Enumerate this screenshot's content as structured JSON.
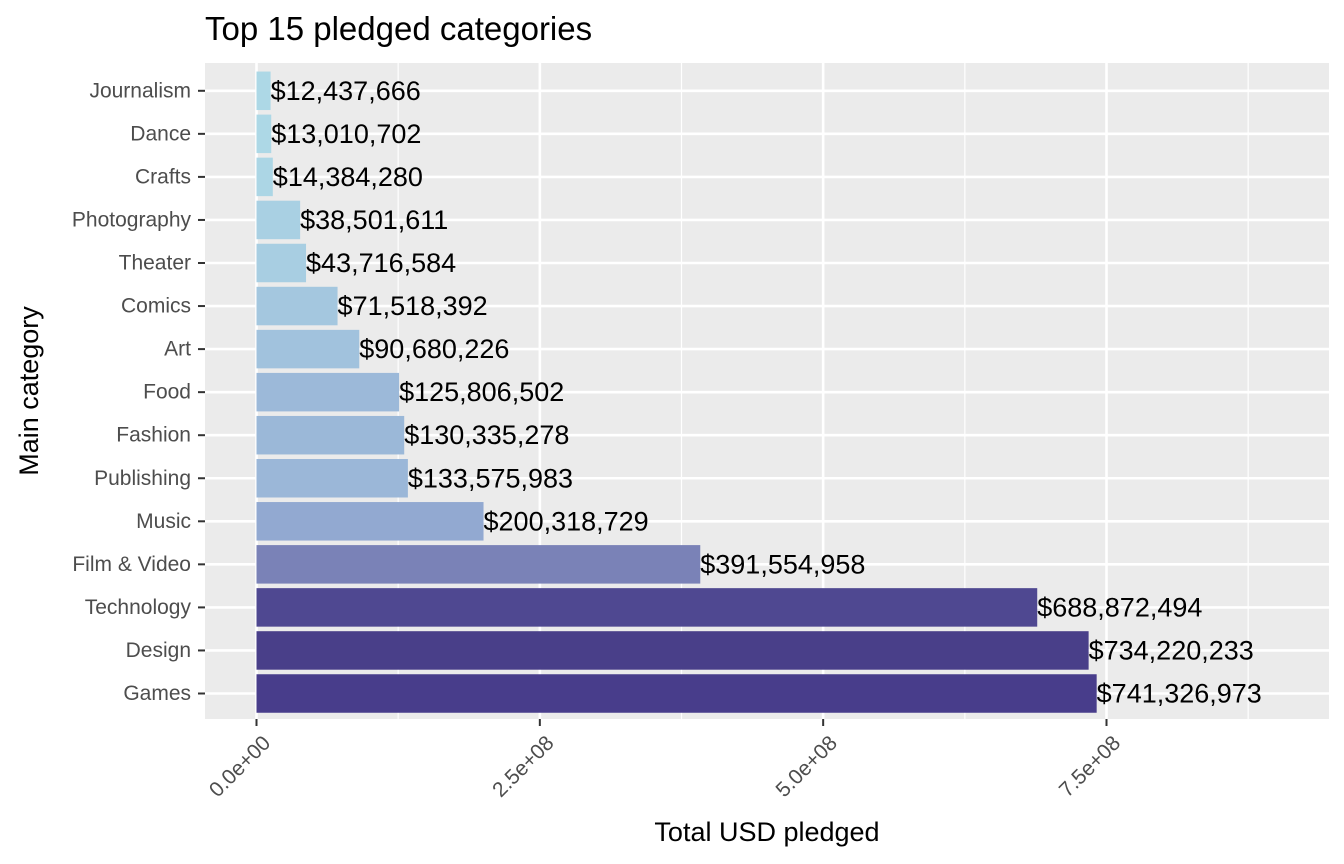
{
  "chart_data": {
    "type": "bar",
    "orientation": "horizontal",
    "title": "Top 15 pledged categories",
    "xlabel": "Total USD pledged",
    "ylabel": "Main category",
    "xlim": [
      0,
      900000000
    ],
    "x_ticks": [
      0,
      250000000,
      500000000,
      750000000
    ],
    "x_tick_labels": [
      "0.0e+00",
      "2.5e+08",
      "5.0e+08",
      "7.5e+08"
    ],
    "grid": true,
    "legend": "none",
    "categories": [
      "Journalism",
      "Dance",
      "Crafts",
      "Photography",
      "Theater",
      "Comics",
      "Art",
      "Food",
      "Fashion",
      "Publishing",
      "Music",
      "Film & Video",
      "Technology",
      "Design",
      "Games"
    ],
    "values": [
      12437666,
      13010702,
      14384280,
      38501611,
      43716584,
      71518392,
      90680226,
      125806502,
      130335278,
      133575983,
      200318729,
      391554958,
      688872494,
      734220233,
      741326973
    ],
    "value_labels": [
      "$12,437,666",
      "$13,010,702",
      "$14,384,280",
      "$38,501,611",
      "$43,716,584",
      "$71,518,392",
      "$90,680,226",
      "$125,806,502",
      "$130,335,278",
      "$133,575,983",
      "$200,318,729",
      "$391,554,958",
      "$688,872,494",
      "$734,220,233",
      "$741,326,973"
    ],
    "colors": [
      "#add8e6",
      "#add8e6",
      "#acd6e5",
      "#a9d0e3",
      "#a8cee2",
      "#a4c7df",
      "#a1c2dd",
      "#9cb9d9",
      "#9bb8d8",
      "#9bb7d8",
      "#92a9d1",
      "#7a82b7",
      "#4f4891",
      "#493f89",
      "#483d8b"
    ]
  }
}
